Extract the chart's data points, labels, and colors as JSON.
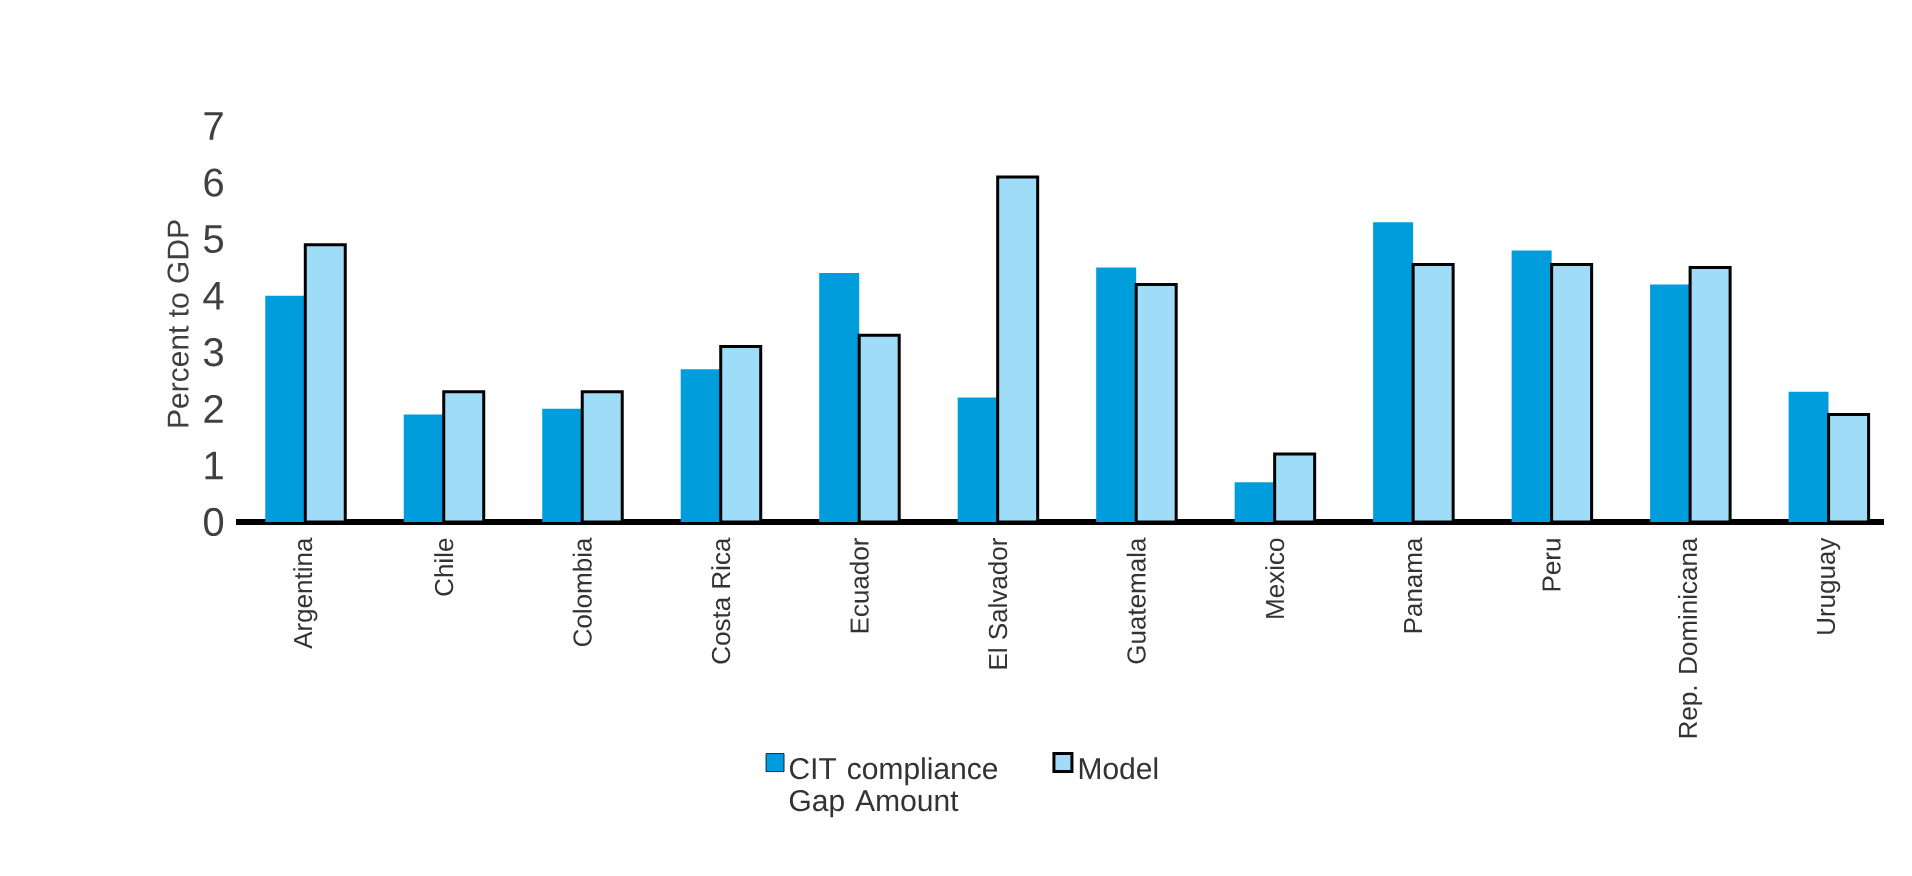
{
  "chart_data": {
    "type": "bar",
    "ylabel": "Percent to GDP",
    "categories": [
      "Argentina",
      "Chile",
      "Colombia",
      "Costa Rica",
      "Ecuador",
      "El Salvador",
      "Guatemala",
      "Mexico",
      "Panama",
      "Peru",
      "Rep. Dominicana",
      "Uruguay"
    ],
    "series": [
      {
        "name": "CIT compliance Gap Amount",
        "color": "#009ddc",
        "values": [
          4.0,
          1.9,
          2.0,
          2.7,
          4.4,
          2.2,
          4.5,
          0.7,
          5.3,
          4.8,
          4.2,
          2.3
        ]
      },
      {
        "name": "Model",
        "color": "#9edcf8",
        "values": [
          4.9,
          2.3,
          2.3,
          3.1,
          3.3,
          6.1,
          4.2,
          1.2,
          4.55,
          4.55,
          4.5,
          1.9
        ]
      }
    ],
    "ylim": [
      0,
      7
    ],
    "yticks": [
      0,
      1,
      2,
      3,
      4,
      5,
      6,
      7
    ],
    "grid": false,
    "legend": "bottom"
  }
}
